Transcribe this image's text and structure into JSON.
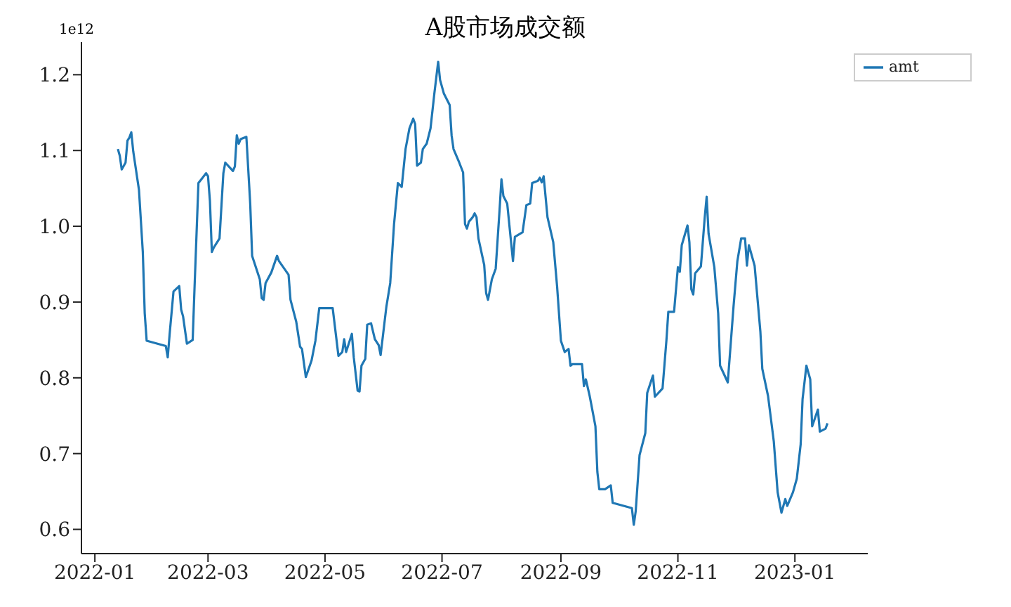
{
  "chart_data": {
    "type": "line",
    "title": "A股市场成交额",
    "annotations": [
      "1e12"
    ],
    "legend": "top right",
    "grid": false,
    "xlim": [
      "2021-12-25",
      "2023-02-08"
    ],
    "xticks": [
      {
        "value": "2022-01",
        "label": "2022-01"
      },
      {
        "value": "2022-03",
        "label": "2022-03"
      },
      {
        "value": "2022-05",
        "label": "2022-05"
      },
      {
        "value": "2022-07",
        "label": "2022-07"
      },
      {
        "value": "2022-09",
        "label": "2022-09"
      },
      {
        "value": "2022-11",
        "label": "2022-11"
      },
      {
        "value": "2023-01",
        "label": "2023-01"
      }
    ],
    "ylim": [
      0.568,
      1.243
    ],
    "yticks": [
      0.6,
      0.7,
      0.8,
      0.9,
      {
        "value": 1,
        "label": "1.0"
      },
      1.1,
      1.2
    ],
    "x": [
      "2022-01-13",
      "2022-01-14",
      "2022-01-15",
      "2022-01-17",
      "2022-01-18",
      "2022-01-19",
      "2022-01-20",
      "2022-01-21",
      "2022-01-24",
      "2022-01-26",
      "2022-01-27",
      "2022-01-28",
      "2022-02-07",
      "2022-02-08",
      "2022-02-09",
      "2022-02-11",
      "2022-02-14",
      "2022-02-15",
      "2022-02-16",
      "2022-02-18",
      "2022-02-21",
      "2022-02-22",
      "2022-02-24",
      "2022-02-28",
      "2022-03-01",
      "2022-03-02",
      "2022-03-03",
      "2022-03-04",
      "2022-03-07",
      "2022-03-09",
      "2022-03-10",
      "2022-03-14",
      "2022-03-15",
      "2022-03-16",
      "2022-03-17",
      "2022-03-18",
      "2022-03-21",
      "2022-03-23",
      "2022-03-24",
      "2022-03-28",
      "2022-03-29",
      "2022-03-30",
      "2022-03-31",
      "2022-04-03",
      "2022-04-06",
      "2022-04-07",
      "2022-04-12",
      "2022-04-13",
      "2022-04-16",
      "2022-04-18",
      "2022-04-19",
      "2022-04-21",
      "2022-04-24",
      "2022-04-26",
      "2022-04-28",
      "2022-05-05",
      "2022-05-08",
      "2022-05-10",
      "2022-05-11",
      "2022-05-12",
      "2022-05-15",
      "2022-05-16",
      "2022-05-18",
      "2022-05-19",
      "2022-05-20",
      "2022-05-22",
      "2022-05-23",
      "2022-05-25",
      "2022-05-27",
      "2022-05-29",
      "2022-05-30",
      "2022-06-02",
      "2022-06-04",
      "2022-06-06",
      "2022-06-08",
      "2022-06-10",
      "2022-06-12",
      "2022-06-14",
      "2022-06-16",
      "2022-06-17",
      "2022-06-18",
      "2022-06-20",
      "2022-06-21",
      "2022-06-23",
      "2022-06-25",
      "2022-06-27",
      "2022-06-29",
      "2022-06-30",
      "2022-07-02",
      "2022-07-05",
      "2022-07-06",
      "2022-07-07",
      "2022-07-10",
      "2022-07-12",
      "2022-07-13",
      "2022-07-14",
      "2022-07-15",
      "2022-07-17",
      "2022-07-18",
      "2022-07-19",
      "2022-07-20",
      "2022-07-23",
      "2022-07-24",
      "2022-07-25",
      "2022-07-27",
      "2022-07-29",
      "2022-07-31",
      "2022-08-01",
      "2022-08-02",
      "2022-08-04",
      "2022-08-07",
      "2022-08-08",
      "2022-08-12",
      "2022-08-14",
      "2022-08-16",
      "2022-08-17",
      "2022-08-20",
      "2022-08-21",
      "2022-08-22",
      "2022-08-23",
      "2022-08-25",
      "2022-08-28",
      "2022-08-30",
      "2022-09-01",
      "2022-09-03",
      "2022-09-05",
      "2022-09-06",
      "2022-09-07",
      "2022-09-12",
      "2022-09-13",
      "2022-09-14",
      "2022-09-16",
      "2022-09-19",
      "2022-09-20",
      "2022-09-21",
      "2022-09-24",
      "2022-09-27",
      "2022-09-28",
      "2022-10-08",
      "2022-10-09",
      "2022-10-10",
      "2022-10-12",
      "2022-10-15",
      "2022-10-16",
      "2022-10-19",
      "2022-10-20",
      "2022-10-24",
      "2022-10-26",
      "2022-10-27",
      "2022-10-30",
      "2022-11-01",
      "2022-11-02",
      "2022-11-03",
      "2022-11-06",
      "2022-11-07",
      "2022-11-08",
      "2022-11-09",
      "2022-11-10",
      "2022-11-13",
      "2022-11-15",
      "2022-11-16",
      "2022-11-17",
      "2022-11-20",
      "2022-11-22",
      "2022-11-23",
      "2022-11-27",
      "2022-11-28",
      "2022-11-30",
      "2022-12-02",
      "2022-12-04",
      "2022-12-06",
      "2022-12-07",
      "2022-12-08",
      "2022-12-11",
      "2022-12-14",
      "2022-12-15",
      "2022-12-18",
      "2022-12-21",
      "2022-12-23",
      "2022-12-25",
      "2022-12-27",
      "2022-12-28",
      "2022-12-31",
      "2023-01-02",
      "2023-01-04",
      "2023-01-05",
      "2023-01-07",
      "2023-01-09",
      "2023-01-10",
      "2023-01-13",
      "2023-01-14",
      "2023-01-17",
      "2023-01-18"
    ],
    "series": [
      {
        "name": "amt",
        "color": "#1f77b4",
        "values": [
          1.102,
          1.093,
          1.075,
          1.084,
          1.113,
          1.117,
          1.124,
          1.099,
          1.048,
          0.966,
          0.885,
          0.849,
          0.842,
          0.827,
          0.858,
          0.914,
          0.921,
          0.89,
          0.881,
          0.845,
          0.85,
          0.921,
          1.057,
          1.07,
          1.066,
          1.033,
          0.966,
          0.972,
          0.984,
          1.07,
          1.084,
          1.073,
          1.079,
          1.12,
          1.109,
          1.115,
          1.118,
          1.03,
          0.961,
          0.93,
          0.905,
          0.903,
          0.925,
          0.939,
          0.961,
          0.954,
          0.936,
          0.903,
          0.874,
          0.841,
          0.838,
          0.801,
          0.823,
          0.849,
          0.892,
          0.892,
          0.829,
          0.834,
          0.851,
          0.834,
          0.858,
          0.827,
          0.783,
          0.782,
          0.816,
          0.825,
          0.87,
          0.872,
          0.851,
          0.843,
          0.83,
          0.894,
          0.925,
          1.003,
          1.057,
          1.052,
          1.102,
          1.129,
          1.142,
          1.135,
          1.08,
          1.084,
          1.102,
          1.109,
          1.129,
          1.175,
          1.217,
          1.193,
          1.175,
          1.16,
          1.12,
          1.102,
          1.084,
          1.071,
          1.003,
          0.997,
          1.006,
          1.012,
          1.017,
          1.012,
          0.984,
          0.949,
          0.912,
          0.903,
          0.93,
          0.944,
          1.021,
          1.062,
          1.04,
          1.03,
          0.954,
          0.986,
          0.992,
          1.028,
          1.03,
          1.057,
          1.06,
          1.064,
          1.058,
          1.066,
          1.012,
          0.979,
          0.921,
          0.849,
          0.834,
          0.838,
          0.816,
          0.818,
          0.818,
          0.789,
          0.798,
          0.776,
          0.736,
          0.676,
          0.653,
          0.653,
          0.658,
          0.635,
          0.628,
          0.606,
          0.624,
          0.698,
          0.727,
          0.78,
          0.803,
          0.775,
          0.786,
          0.849,
          0.887,
          0.887,
          0.946,
          0.94,
          0.975,
          1.001,
          0.979,
          0.917,
          0.91,
          0.938,
          0.947,
          1.012,
          1.039,
          0.99,
          0.946,
          0.885,
          0.816,
          0.794,
          0.827,
          0.894,
          0.954,
          0.984,
          0.984,
          0.948,
          0.975,
          0.948,
          0.861,
          0.812,
          0.776,
          0.716,
          0.649,
          0.622,
          0.64,
          0.631,
          0.649,
          0.667,
          0.712,
          0.772,
          0.816,
          0.798,
          0.736,
          0.758,
          0.729,
          0.733,
          0.74
        ]
      }
    ]
  }
}
